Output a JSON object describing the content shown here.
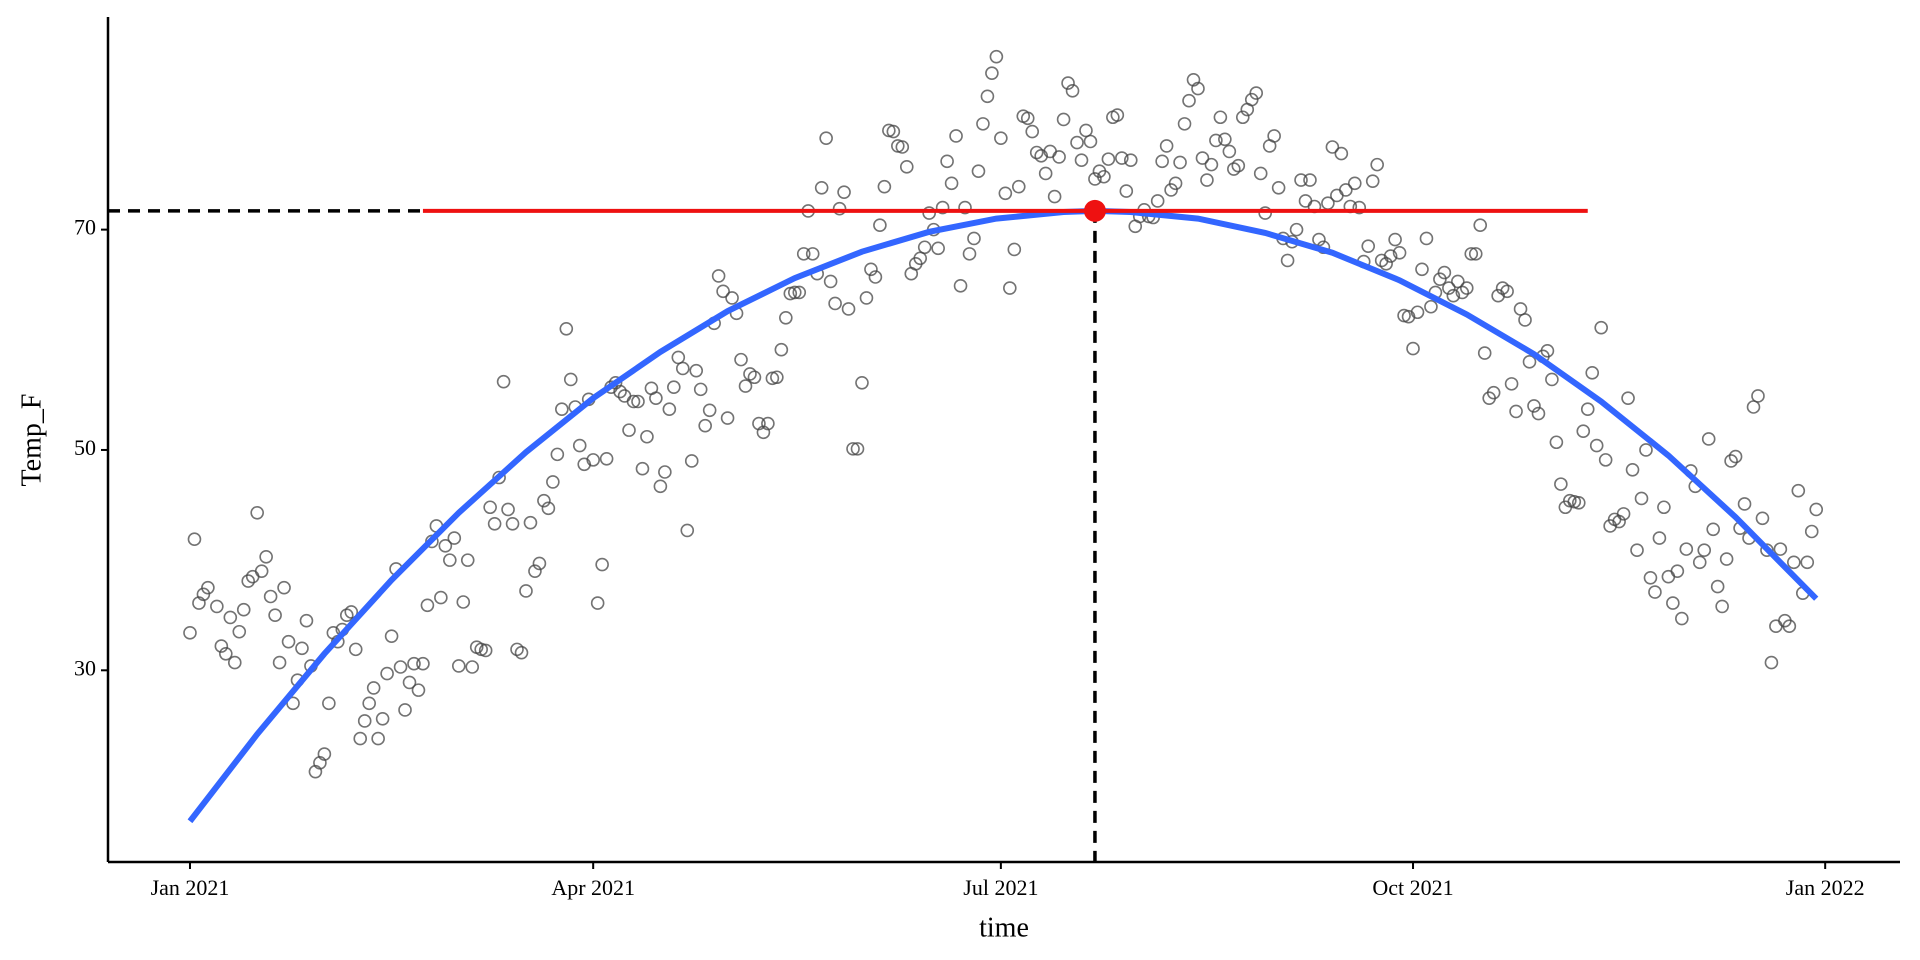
{
  "chart_data": {
    "type": "scatter",
    "xlabel": "time",
    "ylabel": "Temp_F",
    "point_color": "#444444",
    "fit_color": "#3366ff",
    "peak_color": "#ee1111",
    "xlim": [
      -18.3,
      381.7
    ],
    "ylim": [
      12.6,
      89.3
    ],
    "xticks": [
      {
        "value": 0,
        "label": "Jan 2021"
      },
      {
        "value": 90,
        "label": "Apr 2021"
      },
      {
        "value": 181,
        "label": "Jul 2021"
      },
      {
        "value": 273,
        "label": "Oct 2021"
      },
      {
        "value": 365,
        "label": "Jan 2022"
      }
    ],
    "yticks": [
      30,
      50,
      70
    ],
    "x": [
      0,
      1,
      2,
      3,
      4,
      6,
      7,
      8,
      9,
      10,
      11,
      12,
      13,
      14,
      15,
      16,
      17,
      18,
      19,
      20,
      21,
      22,
      23,
      24,
      25,
      26,
      27,
      28,
      29,
      30,
      31,
      32,
      33,
      34,
      35,
      36,
      37,
      38,
      39,
      40,
      41,
      42,
      43,
      44,
      45,
      46,
      47,
      48,
      49,
      50,
      51,
      52,
      53,
      54,
      55,
      56,
      57,
      58,
      59,
      60,
      61,
      62,
      63,
      64,
      65,
      66,
      67,
      68,
      69,
      70,
      71,
      72,
      73,
      74,
      75,
      76,
      77,
      78,
      79,
      80,
      81,
      82,
      83,
      84,
      85,
      86,
      87,
      88,
      89,
      90,
      91,
      92,
      93,
      94,
      95,
      96,
      97,
      98,
      99,
      100,
      101,
      102,
      103,
      104,
      105,
      106,
      107,
      108,
      109,
      110,
      111,
      112,
      113,
      114,
      115,
      116,
      117,
      118,
      119,
      120,
      121,
      122,
      123,
      124,
      125,
      126,
      127,
      128,
      129,
      130,
      131,
      132,
      133,
      134,
      135,
      136,
      137,
      138,
      139,
      140,
      141,
      142,
      143,
      144,
      145,
      146,
      147,
      148,
      149,
      150,
      151,
      152,
      153,
      154,
      155,
      156,
      157,
      158,
      159,
      160,
      161,
      162,
      163,
      164,
      165,
      166,
      167,
      168,
      169,
      170,
      171,
      172,
      173,
      174,
      175,
      176,
      177,
      178,
      179,
      180,
      181,
      182,
      183,
      184,
      185,
      186,
      187,
      188,
      189,
      190,
      191,
      192,
      193,
      194,
      195,
      196,
      197,
      198,
      199,
      200,
      201,
      202,
      203,
      204,
      205,
      206,
      207,
      208,
      209,
      210,
      211,
      212,
      213,
      214,
      215,
      216,
      217,
      218,
      219,
      220,
      221,
      222,
      223,
      224,
      225,
      226,
      227,
      228,
      229,
      230,
      231,
      232,
      233,
      234,
      235,
      236,
      237,
      238,
      239,
      240,
      241,
      242,
      243,
      244,
      245,
      246,
      247,
      248,
      249,
      250,
      251,
      252,
      253,
      254,
      255,
      256,
      257,
      258,
      259,
      260,
      261,
      262,
      263,
      264,
      265,
      266,
      267,
      268,
      269,
      270,
      271,
      272,
      273,
      274,
      275,
      276,
      277,
      278,
      279,
      280,
      281,
      282,
      283,
      284,
      285,
      286,
      287,
      288,
      289,
      290,
      291,
      292,
      293,
      294,
      295,
      296,
      297,
      298,
      299,
      300,
      301,
      302,
      303,
      304,
      305,
      306,
      307,
      308,
      309,
      310,
      311,
      312,
      313,
      314,
      315,
      316,
      317,
      318,
      319,
      320,
      321,
      322,
      323,
      324,
      325,
      326,
      327,
      328,
      329,
      330,
      331,
      332,
      333,
      334,
      335,
      336,
      337,
      338,
      339,
      340,
      341,
      342,
      343,
      344,
      345,
      346,
      347,
      348,
      349,
      350,
      351,
      352,
      353,
      354,
      355,
      356,
      357,
      358,
      359,
      360,
      361,
      362,
      363
    ],
    "values": [
      33.4,
      41.9,
      36.1,
      36.9,
      37.5,
      35.8,
      32.2,
      31.5,
      34.8,
      30.7,
      33.5,
      35.5,
      38.1,
      38.5,
      44.3,
      39,
      40.3,
      36.7,
      35,
      30.7,
      37.5,
      32.6,
      27,
      29.1,
      32,
      34.5,
      30.4,
      20.8,
      21.6,
      22.4,
      27,
      33.4,
      32.6,
      33.7,
      35,
      35.3,
      31.9,
      23.8,
      25.4,
      27,
      28.4,
      23.8,
      25.6,
      29.7,
      33.1,
      39.2,
      30.3,
      26.4,
      28.9,
      30.6,
      28.2,
      30.6,
      35.9,
      41.7,
      43.1,
      36.6,
      41.3,
      40,
      42,
      30.4,
      36.2,
      40,
      30.3,
      32.1,
      31.9,
      31.8,
      44.8,
      43.3,
      47.5,
      56.2,
      44.6,
      43.3,
      31.9,
      31.6,
      37.2,
      43.4,
      39,
      39.7,
      45.4,
      44.7,
      47.1,
      49.6,
      53.7,
      61,
      56.4,
      53.9,
      50.4,
      48.7,
      54.6,
      49.1,
      36.1,
      39.6,
      49.2,
      55.7,
      56.1,
      55.3,
      54.9,
      51.8,
      54.4,
      54.4,
      48.3,
      51.2,
      55.6,
      54.7,
      46.7,
      48,
      53.7,
      55.7,
      58.4,
      57.4,
      42.7,
      49,
      57.2,
      55.5,
      52.2,
      53.6,
      61.5,
      65.8,
      64.4,
      52.9,
      63.8,
      62.4,
      58.2,
      55.8,
      56.9,
      56.6,
      52.4,
      51.6,
      52.4,
      56.5,
      56.6,
      59.1,
      62,
      64.2,
      64.3,
      64.3,
      67.8,
      71.7,
      67.8,
      66,
      73.8,
      78.3,
      65.3,
      63.3,
      71.9,
      73.4,
      62.8,
      50.1,
      50.1,
      56.1,
      63.8,
      66.4,
      65.7,
      70.4,
      73.9,
      79,
      78.9,
      77.6,
      77.5,
      75.7,
      66,
      66.9,
      67.4,
      68.4,
      71.5,
      70,
      68.3,
      72,
      76.2,
      74.2,
      78.5,
      64.9,
      72,
      67.8,
      69.2,
      75.3,
      79.6,
      82.1,
      84.2,
      85.7,
      78.3,
      73.3,
      64.7,
      68.2,
      73.9,
      80.3,
      80.1,
      78.9,
      77,
      76.7,
      75.1,
      77.1,
      73,
      76.6,
      80,
      83.3,
      82.6,
      77.9,
      76.3,
      79,
      78,
      74.6,
      75.3,
      74.8,
      76.4,
      80.2,
      80.4,
      76.5,
      73.5,
      76.3,
      70.3,
      71.2,
      71.8,
      71.2,
      71.1,
      72.6,
      76.2,
      77.6,
      73.6,
      74.2,
      76.1,
      79.6,
      81.7,
      83.6,
      82.8,
      76.5,
      74.5,
      75.9,
      78.1,
      80.2,
      78.2,
      77.1,
      75.5,
      75.8,
      80.2,
      80.9,
      81.8,
      82.4,
      75.1,
      71.5,
      77.6,
      78.5,
      73.8,
      69.2,
      67.2,
      68.9,
      70,
      74.5,
      72.6,
      74.5,
      72.1,
      69.1,
      68.4,
      72.4,
      77.5,
      73.1,
      76.9,
      73.6,
      72.1,
      74.2,
      72,
      67.1,
      68.5,
      74.4,
      75.9,
      67.2,
      66.9,
      67.6,
      69.1,
      67.9,
      62.2,
      62.1,
      59.2,
      62.5,
      66.4,
      69.2,
      63,
      64.3,
      65.5,
      66.1,
      64.7,
      64,
      65.3,
      64.3,
      64.7,
      67.8,
      67.8,
      70.4,
      58.8,
      54.7,
      55.2,
      64,
      64.7,
      64.4,
      56,
      53.5,
      62.8,
      61.8,
      58,
      54,
      53.3,
      58.5,
      59,
      56.4,
      50.7,
      46.9,
      44.8,
      45.4,
      45.3,
      45.2,
      51.7,
      53.7,
      57,
      50.4,
      61.1,
      49.1,
      43.1,
      43.7,
      43.5,
      44.2,
      54.7,
      48.2,
      40.9,
      45.6,
      50,
      38.4,
      37.1,
      42,
      44.8,
      38.5,
      36.1,
      39,
      34.7,
      41,
      48.1,
      46.7,
      39.8,
      40.9,
      51,
      42.8,
      37.6,
      35.8,
      40.1,
      49,
      49.4,
      42.9,
      45.1,
      42,
      53.9,
      54.9,
      43.8,
      40.9,
      30.7,
      34,
      41,
      34.5,
      34,
      39.8,
      46.3,
      37,
      39.8,
      42.6,
      44.6
    ],
    "fit": {
      "x": [
        0,
        15,
        30,
        45,
        60,
        75,
        90,
        105,
        120,
        135,
        150,
        165,
        180,
        195,
        202,
        210,
        225,
        240,
        255,
        270,
        285,
        300,
        315,
        330,
        345,
        363
      ],
      "values": [
        16.3,
        24.2,
        31.5,
        38.2,
        44.3,
        49.8,
        54.7,
        58.9,
        62.6,
        65.6,
        68.0,
        69.8,
        71.0,
        71.6,
        71.7,
        71.6,
        71.0,
        69.7,
        67.9,
        65.4,
        62.3,
        58.7,
        54.4,
        49.5,
        43.9,
        36.5
      ]
    },
    "peak": {
      "x": 202,
      "y": 71.7
    },
    "hline": {
      "x": [
        52,
        312
      ],
      "y": 71.7
    }
  }
}
